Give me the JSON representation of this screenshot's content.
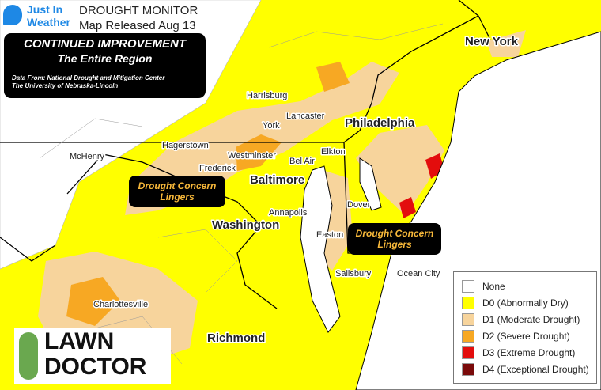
{
  "header": {
    "brand": [
      "Just In",
      "Weather"
    ],
    "title": "DROUGHT MONITOR",
    "subtitle": "Map Released Aug 13"
  },
  "summary": {
    "headline": "CONTINUED IMPROVEMENT",
    "subheadline": "The Entire Region",
    "source": [
      "Data From: National Drought and Mitigation Center",
      "The University of Nebraska-Lincoln"
    ]
  },
  "callouts": [
    "Drought Concern Lingers",
    "Drought Concern Lingers"
  ],
  "cities": [
    "New York",
    "Harrisburg",
    "Lancaster",
    "York",
    "Philadelphia",
    "Hagerstown",
    "Westminster",
    "Frederick",
    "Bel Air",
    "Elkton",
    "Baltimore",
    "McHenry",
    "Annapolis",
    "Washington",
    "Dover",
    "Easton",
    "Salisbury",
    "Ocean City",
    "Charlottesville",
    "Richmond"
  ],
  "legend": [
    {
      "label": "None",
      "color": "#ffffff"
    },
    {
      "label": "D0 (Abnormally Dry)",
      "color": "#ffff00"
    },
    {
      "label": "D1 (Moderate Drought)",
      "color": "#f7d49c"
    },
    {
      "label": "D2 (Severe Drought)",
      "color": "#f7a823"
    },
    {
      "label": "D3 (Extreme Drought)",
      "color": "#e30d0d"
    },
    {
      "label": "D4 (Exceptional Drought)",
      "color": "#7a0a0a"
    }
  ],
  "sponsor": [
    "LAWN",
    "DOCTOR"
  ]
}
